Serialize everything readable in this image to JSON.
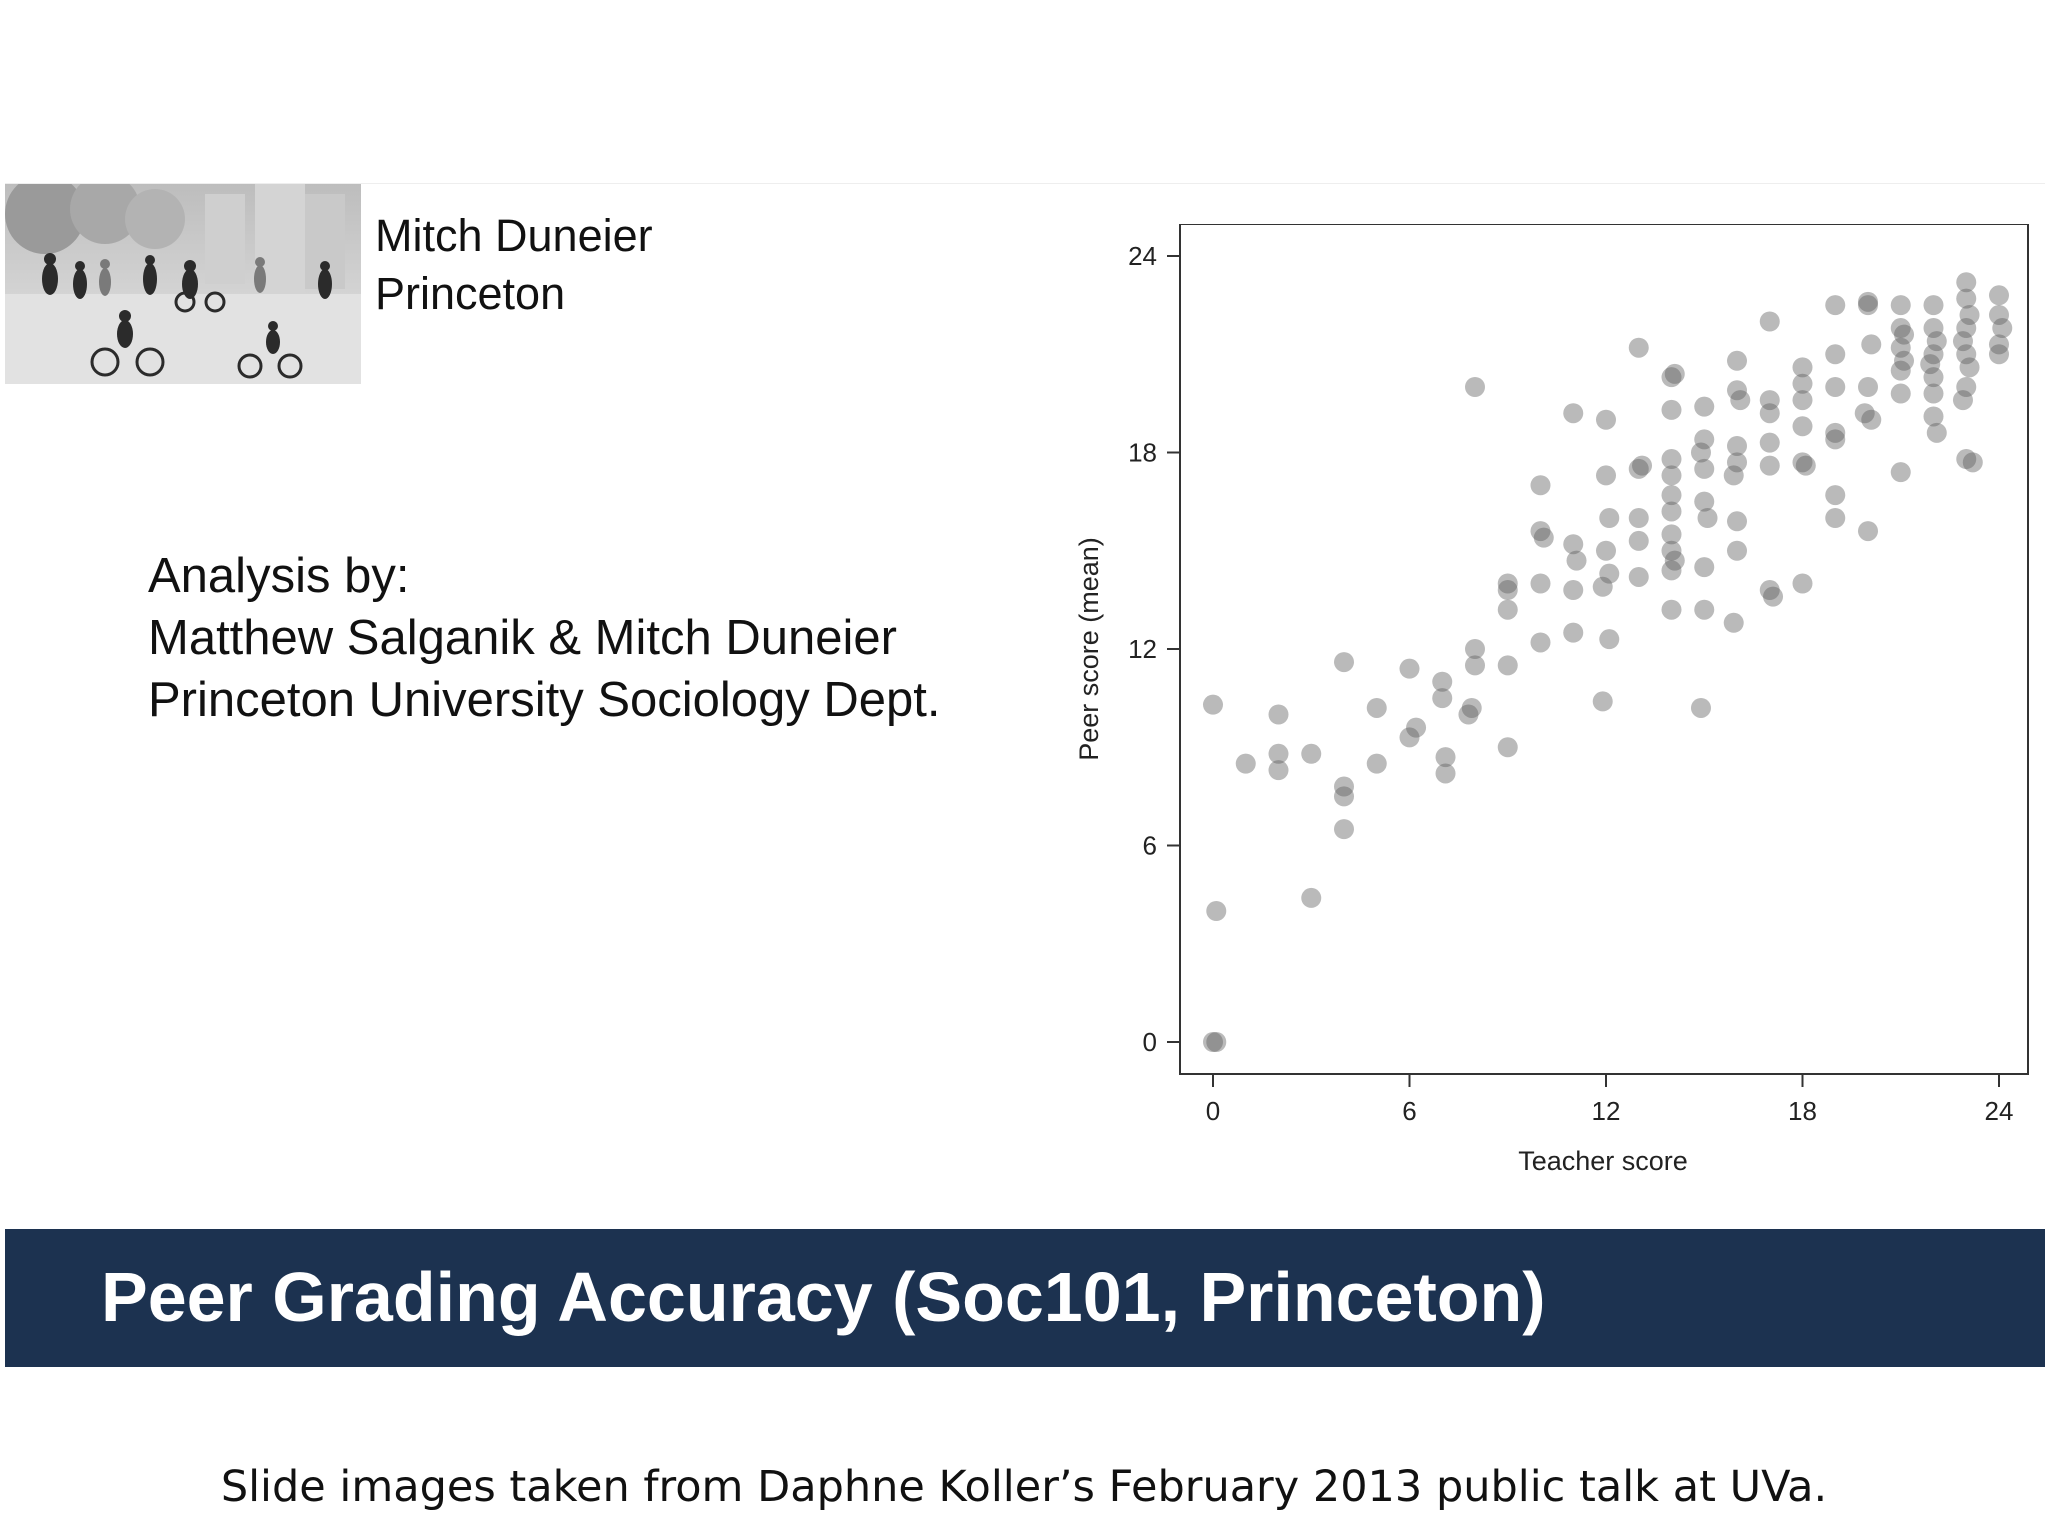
{
  "speaker": {
    "name": "Mitch Duneier",
    "affiliation": "Princeton"
  },
  "analysis": {
    "heading": "Analysis by:",
    "authors": "Matthew Salganik & Mitch Duneier",
    "department": "Princeton University Sociology Dept."
  },
  "slide_title": "Peer Grading Accuracy (Soc101, Princeton)",
  "caption": "Slide images taken from Daphne Koller’s February 2013 public talk at UVa.",
  "colors": {
    "title_bar": "#1c3250",
    "point": "#5a5a5a"
  },
  "chart_data": {
    "type": "scatter",
    "xlabel": "Teacher score",
    "ylabel": "Peer score (mean)",
    "xlim": [
      0,
      24
    ],
    "ylim": [
      0,
      24
    ],
    "xticks": [
      "0",
      "6",
      "12",
      "18",
      "24"
    ],
    "yticks": [
      "0",
      "6",
      "12",
      "18",
      "24"
    ],
    "grid": false,
    "points": [
      [
        0,
        0
      ],
      [
        0.1,
        0
      ],
      [
        0,
        10.3
      ],
      [
        0.1,
        4
      ],
      [
        1,
        8.5
      ],
      [
        2,
        10
      ],
      [
        2,
        8.8
      ],
      [
        2,
        8.3
      ],
      [
        3,
        4.4
      ],
      [
        3,
        8.8
      ],
      [
        4,
        11.6
      ],
      [
        4,
        7.8
      ],
      [
        4,
        7.5
      ],
      [
        4,
        6.5
      ],
      [
        5,
        10.2
      ],
      [
        5,
        8.5
      ],
      [
        6,
        11.4
      ],
      [
        6,
        9.3
      ],
      [
        6.2,
        9.6
      ],
      [
        7,
        11
      ],
      [
        7,
        10.5
      ],
      [
        7.1,
        8.7
      ],
      [
        7.1,
        8.2
      ],
      [
        8,
        20
      ],
      [
        8,
        12
      ],
      [
        8,
        11.5
      ],
      [
        7.9,
        10.2
      ],
      [
        7.8,
        10
      ],
      [
        9,
        14
      ],
      [
        9,
        13.8
      ],
      [
        9,
        13.2
      ],
      [
        9,
        11.5
      ],
      [
        9,
        9
      ],
      [
        10,
        17
      ],
      [
        10,
        15.6
      ],
      [
        10.1,
        15.4
      ],
      [
        10,
        14
      ],
      [
        10,
        12.2
      ],
      [
        11,
        19.2
      ],
      [
        11,
        15.2
      ],
      [
        11.1,
        14.7
      ],
      [
        11,
        13.8
      ],
      [
        11,
        12.5
      ],
      [
        12,
        19
      ],
      [
        12,
        17.3
      ],
      [
        12.1,
        16
      ],
      [
        12,
        15
      ],
      [
        12.1,
        14.3
      ],
      [
        11.9,
        13.9
      ],
      [
        12.1,
        12.3
      ],
      [
        11.9,
        10.4
      ],
      [
        13,
        21.2
      ],
      [
        13,
        17.5
      ],
      [
        13.1,
        17.6
      ],
      [
        13,
        16
      ],
      [
        13,
        15.3
      ],
      [
        13,
        14.2
      ],
      [
        14,
        20.3
      ],
      [
        14.1,
        20.4
      ],
      [
        14,
        19.3
      ],
      [
        14,
        17.8
      ],
      [
        14,
        17.3
      ],
      [
        14,
        16.7
      ],
      [
        14,
        16.2
      ],
      [
        14,
        15.5
      ],
      [
        14,
        15
      ],
      [
        14.1,
        14.7
      ],
      [
        14,
        14.4
      ],
      [
        14,
        13.2
      ],
      [
        15,
        19.4
      ],
      [
        15,
        18.4
      ],
      [
        14.9,
        18
      ],
      [
        15,
        17.5
      ],
      [
        15,
        16.5
      ],
      [
        15.1,
        16
      ],
      [
        15,
        14.5
      ],
      [
        15,
        13.2
      ],
      [
        14.9,
        10.2
      ],
      [
        16,
        20.8
      ],
      [
        16,
        19.9
      ],
      [
        16.1,
        19.6
      ],
      [
        16,
        18.2
      ],
      [
        16,
        17.7
      ],
      [
        15.9,
        17.3
      ],
      [
        16,
        15.9
      ],
      [
        16,
        15
      ],
      [
        15.9,
        12.8
      ],
      [
        17,
        22
      ],
      [
        17,
        19.6
      ],
      [
        17,
        19.2
      ],
      [
        17,
        18.3
      ],
      [
        17,
        17.6
      ],
      [
        17,
        13.8
      ],
      [
        17.1,
        13.6
      ],
      [
        18,
        20.6
      ],
      [
        18,
        20.1
      ],
      [
        18,
        19.6
      ],
      [
        18,
        18.8
      ],
      [
        18,
        17.7
      ],
      [
        18.1,
        17.6
      ],
      [
        18,
        14
      ],
      [
        19,
        22.5
      ],
      [
        19,
        21
      ],
      [
        19,
        20
      ],
      [
        19,
        18.6
      ],
      [
        19,
        18.4
      ],
      [
        19,
        16.7
      ],
      [
        19,
        16
      ],
      [
        20,
        22.6
      ],
      [
        20,
        22.5
      ],
      [
        20.1,
        21.3
      ],
      [
        20,
        20
      ],
      [
        19.9,
        19.2
      ],
      [
        20.1,
        19
      ],
      [
        20,
        15.6
      ],
      [
        21,
        22.5
      ],
      [
        21,
        21.8
      ],
      [
        21.1,
        21.6
      ],
      [
        21,
        21.2
      ],
      [
        21.1,
        20.8
      ],
      [
        21,
        20.5
      ],
      [
        21,
        19.8
      ],
      [
        21,
        17.4
      ],
      [
        22,
        22.5
      ],
      [
        22,
        21.8
      ],
      [
        22.1,
        21.4
      ],
      [
        22,
        21
      ],
      [
        21.9,
        20.7
      ],
      [
        22,
        20.3
      ],
      [
        22,
        19.8
      ],
      [
        22,
        19.1
      ],
      [
        22.1,
        18.6
      ],
      [
        23,
        23.2
      ],
      [
        23,
        22.7
      ],
      [
        23.1,
        22.2
      ],
      [
        23,
        21.8
      ],
      [
        22.9,
        21.4
      ],
      [
        23,
        21
      ],
      [
        23.1,
        20.6
      ],
      [
        23,
        20
      ],
      [
        22.9,
        19.6
      ],
      [
        23,
        17.8
      ],
      [
        23.2,
        17.7
      ],
      [
        24,
        22.8
      ],
      [
        24,
        22.2
      ],
      [
        24.1,
        21.8
      ],
      [
        24,
        21.3
      ],
      [
        24,
        21
      ]
    ]
  }
}
